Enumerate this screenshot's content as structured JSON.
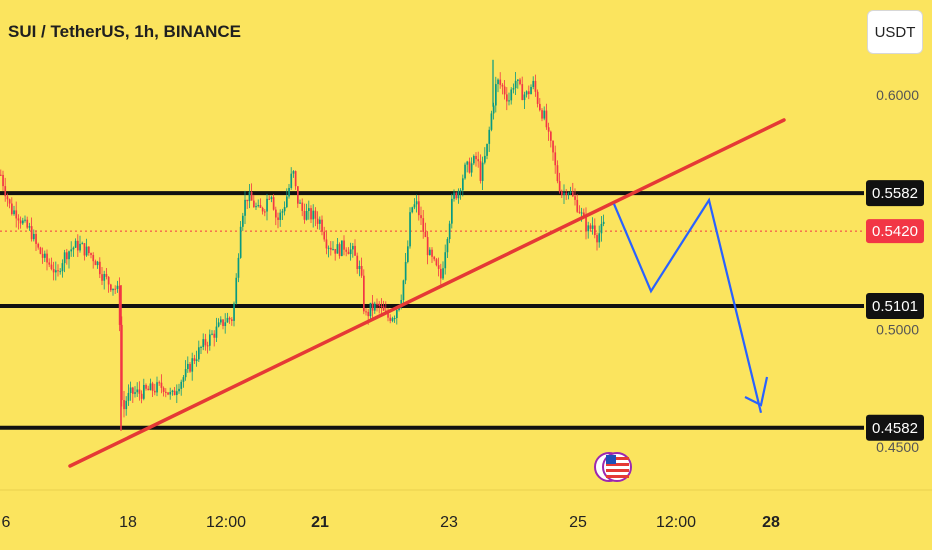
{
  "header": {
    "title": "SUI / TetherUS, 1h, BINANCE",
    "currency": "USDT"
  },
  "flag_icon": "us-flag-icon",
  "chart_data": {
    "type": "candlestick",
    "symbol": "SUI / TetherUS",
    "interval": "1h",
    "exchange": "BINANCE",
    "price_ticks": [
      "0.6000",
      "0.5000",
      "0.4500"
    ],
    "time_ticks": [
      "6",
      "18",
      "12:00",
      "21",
      "23",
      "25",
      "12:00",
      "28"
    ],
    "ylim": [
      0.438,
      0.653
    ],
    "current_price": "0.5420",
    "horizontal_levels": [
      {
        "label": "0.5582",
        "value": 0.5582
      },
      {
        "label": "0.5101",
        "value": 0.5101
      },
      {
        "label": "0.4582",
        "value": 0.4582
      }
    ],
    "close_path": [
      [
        0,
        0.566
      ],
      [
        4,
        0.56
      ],
      [
        10,
        0.551
      ],
      [
        16,
        0.55
      ],
      [
        24,
        0.544
      ],
      [
        30,
        0.542
      ],
      [
        36,
        0.535
      ],
      [
        45,
        0.529
      ],
      [
        52,
        0.527
      ],
      [
        56,
        0.521
      ],
      [
        60,
        0.529
      ],
      [
        66,
        0.533
      ],
      [
        72,
        0.535
      ],
      [
        78,
        0.536
      ],
      [
        84,
        0.534
      ],
      [
        90,
        0.532
      ],
      [
        96,
        0.529
      ],
      [
        102,
        0.523
      ],
      [
        108,
        0.52
      ],
      [
        114,
        0.518
      ],
      [
        117,
        0.516
      ],
      [
        119,
        0.503
      ],
      [
        121,
        0.47
      ],
      [
        123,
        0.466
      ],
      [
        125,
        0.47
      ],
      [
        131,
        0.473
      ],
      [
        139,
        0.473
      ],
      [
        147,
        0.474
      ],
      [
        155,
        0.475
      ],
      [
        163,
        0.476
      ],
      [
        171,
        0.471
      ],
      [
        177,
        0.477
      ],
      [
        185,
        0.481
      ],
      [
        192,
        0.487
      ],
      [
        200,
        0.492
      ],
      [
        208,
        0.496
      ],
      [
        216,
        0.5
      ],
      [
        224,
        0.504
      ],
      [
        232,
        0.505
      ],
      [
        236,
        0.524
      ],
      [
        240,
        0.548
      ],
      [
        246,
        0.557
      ],
      [
        252,
        0.554
      ],
      [
        258,
        0.55
      ],
      [
        264,
        0.553
      ],
      [
        270,
        0.56
      ],
      [
        276,
        0.546
      ],
      [
        282,
        0.551
      ],
      [
        288,
        0.56
      ],
      [
        292,
        0.568
      ],
      [
        296,
        0.556
      ],
      [
        302,
        0.55
      ],
      [
        308,
        0.549
      ],
      [
        314,
        0.548
      ],
      [
        320,
        0.546
      ],
      [
        326,
        0.537
      ],
      [
        332,
        0.535
      ],
      [
        338,
        0.534
      ],
      [
        344,
        0.536
      ],
      [
        352,
        0.533
      ],
      [
        360,
        0.524
      ],
      [
        364,
        0.505
      ],
      [
        370,
        0.509
      ],
      [
        378,
        0.51
      ],
      [
        386,
        0.505
      ],
      [
        394,
        0.507
      ],
      [
        400,
        0.514
      ],
      [
        406,
        0.53
      ],
      [
        410,
        0.552
      ],
      [
        416,
        0.553
      ],
      [
        422,
        0.543
      ],
      [
        428,
        0.532
      ],
      [
        434,
        0.527
      ],
      [
        440,
        0.522
      ],
      [
        446,
        0.54
      ],
      [
        452,
        0.556
      ],
      [
        458,
        0.56
      ],
      [
        464,
        0.568
      ],
      [
        470,
        0.57
      ],
      [
        476,
        0.573
      ],
      [
        480,
        0.565
      ],
      [
        486,
        0.577
      ],
      [
        491,
        0.593
      ],
      [
        496,
        0.606
      ],
      [
        502,
        0.603
      ],
      [
        508,
        0.598
      ],
      [
        514,
        0.607
      ],
      [
        520,
        0.601
      ],
      [
        526,
        0.6
      ],
      [
        532,
        0.605
      ],
      [
        538,
        0.596
      ],
      [
        544,
        0.59
      ],
      [
        548,
        0.581
      ],
      [
        552,
        0.575
      ],
      [
        556,
        0.565
      ],
      [
        562,
        0.557
      ],
      [
        566,
        0.561
      ],
      [
        572,
        0.556
      ],
      [
        578,
        0.552
      ],
      [
        582,
        0.547
      ],
      [
        588,
        0.542
      ],
      [
        592,
        0.545
      ],
      [
        596,
        0.54
      ],
      [
        600,
        0.542
      ],
      [
        604,
        0.545
      ]
    ],
    "projection": [
      {
        "x": 614,
        "y": 0.5536
      },
      {
        "x": 651,
        "y": 0.5164
      },
      {
        "x": 709,
        "y": 0.5552
      },
      {
        "x": 761,
        "y": 0.4646
      }
    ]
  }
}
